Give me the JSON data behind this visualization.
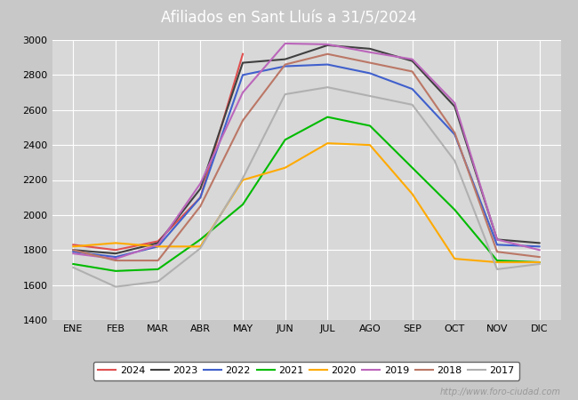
{
  "title": "Afiliados en Sant Lluís a 31/5/2024",
  "title_color": "#ffffff",
  "title_bg_color": "#4472c4",
  "outer_bg_color": "#c8c8c8",
  "plot_bg_color": "#d8d8d8",
  "watermark": "http://www.foro-ciudad.com",
  "months": [
    "ENE",
    "FEB",
    "MAR",
    "ABR",
    "MAY",
    "JUN",
    "JUL",
    "AGO",
    "SEP",
    "OCT",
    "NOV",
    "DIC"
  ],
  "ylim": [
    1400,
    3000
  ],
  "yticks": [
    1400,
    1600,
    1800,
    2000,
    2200,
    2400,
    2600,
    2800,
    3000
  ],
  "series": [
    {
      "year": "2024",
      "color": "#e05050",
      "linewidth": 1.5,
      "data": [
        1830,
        1800,
        1850,
        2100,
        2920,
        null,
        null,
        null,
        null,
        null,
        null,
        null
      ]
    },
    {
      "year": "2023",
      "color": "#404040",
      "linewidth": 1.5,
      "data": [
        1800,
        1780,
        1840,
        2150,
        2870,
        2890,
        2970,
        2950,
        2880,
        2620,
        1860,
        1840
      ]
    },
    {
      "year": "2022",
      "color": "#4060cc",
      "linewidth": 1.5,
      "data": [
        1790,
        1760,
        1820,
        2100,
        2800,
        2850,
        2860,
        2810,
        2720,
        2460,
        1830,
        1820
      ]
    },
    {
      "year": "2021",
      "color": "#00bb00",
      "linewidth": 1.5,
      "data": [
        1720,
        1680,
        1690,
        1860,
        2060,
        2430,
        2560,
        2510,
        2270,
        2030,
        1740,
        1730
      ]
    },
    {
      "year": "2020",
      "color": "#ffaa00",
      "linewidth": 1.5,
      "data": [
        1820,
        1840,
        1820,
        1820,
        2200,
        2270,
        2410,
        2400,
        2120,
        1750,
        1730,
        1730
      ]
    },
    {
      "year": "2019",
      "color": "#bb66bb",
      "linewidth": 1.5,
      "data": [
        1780,
        1750,
        1830,
        2180,
        2700,
        2980,
        2975,
        2930,
        2890,
        2640,
        1860,
        1800
      ]
    },
    {
      "year": "2018",
      "color": "#bb7766",
      "linewidth": 1.5,
      "data": [
        1800,
        1740,
        1740,
        2050,
        2540,
        2860,
        2920,
        2870,
        2820,
        2470,
        1790,
        1760
      ]
    },
    {
      "year": "2017",
      "color": "#b0b0b0",
      "linewidth": 1.5,
      "data": [
        1700,
        1590,
        1620,
        1810,
        2210,
        2690,
        2730,
        2680,
        2630,
        2310,
        1690,
        1720
      ]
    }
  ]
}
